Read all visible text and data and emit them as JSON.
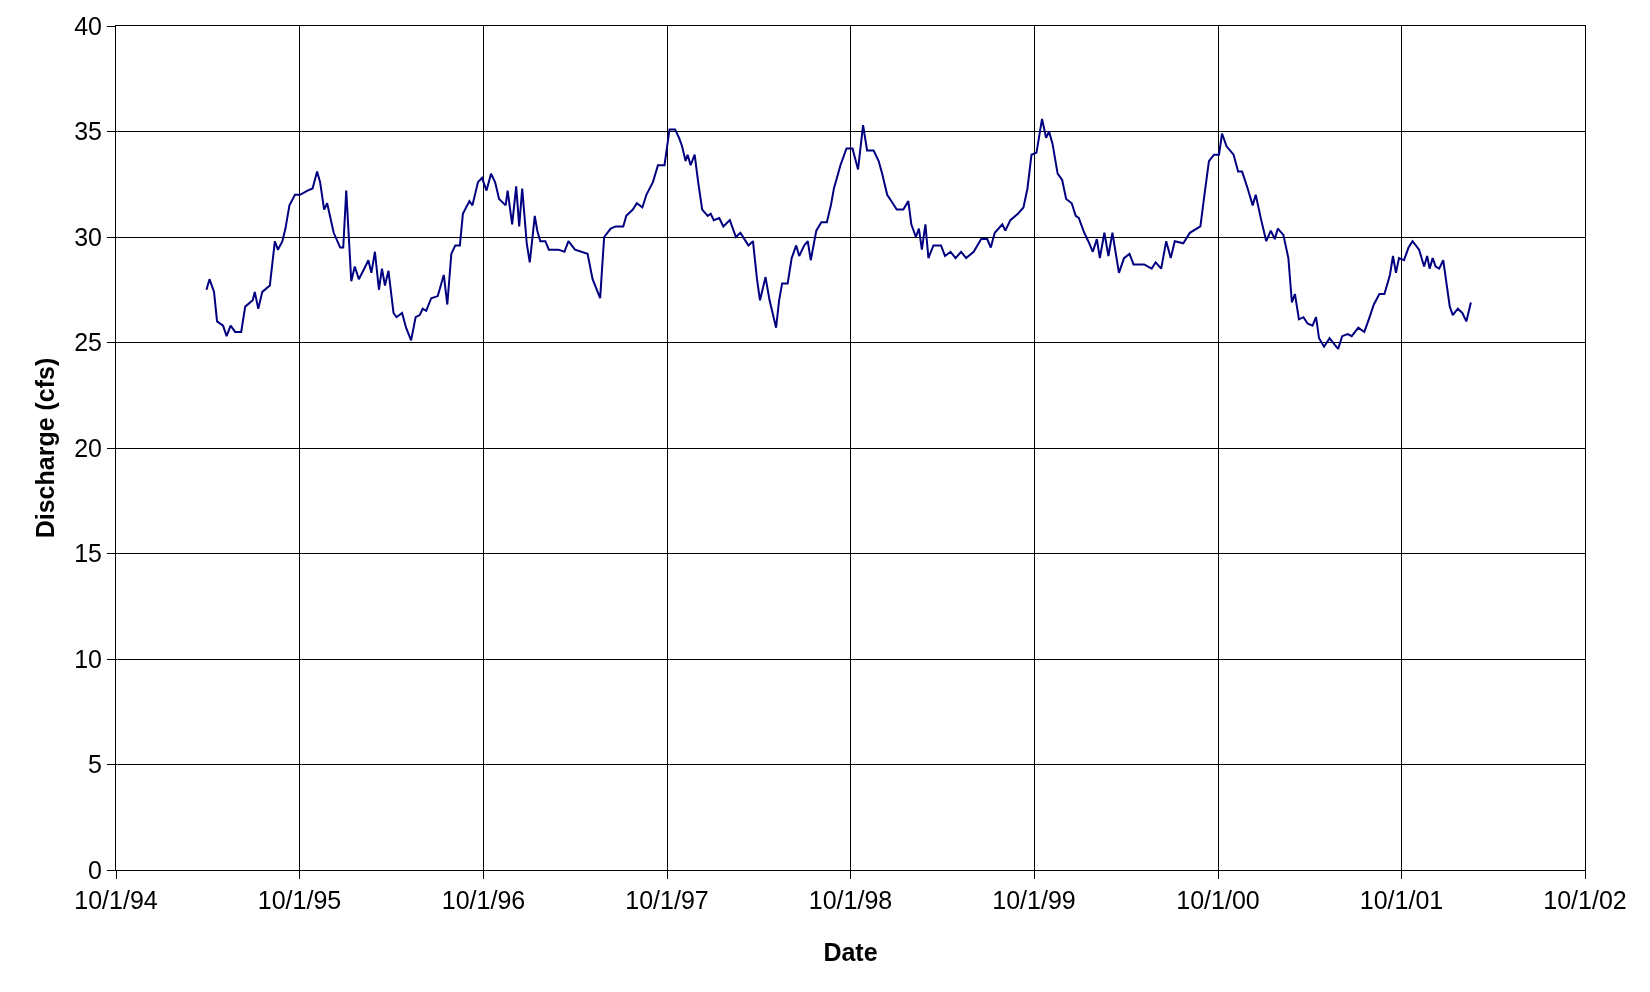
{
  "chart_data": {
    "type": "line",
    "xlabel": "Date",
    "ylabel": "Discharge (cfs)",
    "x": [
      "1995-03-30",
      "1995-04-05",
      "1995-04-14",
      "1995-04-20",
      "1995-05-02",
      "1995-05-09",
      "1995-05-17",
      "1995-05-26",
      "1995-06-07",
      "1995-06-15",
      "1995-06-30",
      "1995-07-04",
      "1995-07-11",
      "1995-07-19",
      "1995-08-03",
      "1995-08-13",
      "1995-08-19",
      "1995-08-28",
      "1995-09-03",
      "1995-09-11",
      "1995-09-22",
      "1995-10-02",
      "1995-10-17",
      "1995-10-27",
      "1995-11-05",
      "1995-11-11",
      "1995-11-19",
      "1995-11-25",
      "1995-12-08",
      "1995-12-21",
      "1995-12-27",
      "1996-01-02",
      "1996-01-12",
      "1996-01-19",
      "1996-01-27",
      "1996-02-09",
      "1996-02-15",
      "1996-02-21",
      "1996-02-28",
      "1996-03-07",
      "1996-03-13",
      "1996-03-19",
      "1996-03-26",
      "1996-04-05",
      "1996-04-11",
      "1996-04-22",
      "1996-04-30",
      "1996-05-10",
      "1996-05-19",
      "1996-05-27",
      "1996-06-02",
      "1996-06-09",
      "1996-06-19",
      "1996-07-02",
      "1996-07-14",
      "1996-07-21",
      "1996-07-29",
      "1996-08-06",
      "1996-08-15",
      "1996-08-21",
      "1996-09-03",
      "1996-09-09",
      "1996-09-20",
      "1996-09-28",
      "1996-10-07",
      "1996-10-16",
      "1996-10-24",
      "1996-11-01",
      "1996-11-14",
      "1996-11-18",
      "1996-11-27",
      "1996-12-05",
      "1996-12-11",
      "1996-12-17",
      "1996-12-26",
      "1997-01-01",
      "1997-01-07",
      "1997-01-11",
      "1997-01-16",
      "1997-01-22",
      "1997-02-01",
      "1997-02-08",
      "1997-02-27",
      "1997-03-11",
      "1997-03-19",
      "1997-04-01",
      "1997-04-26",
      "1997-05-06",
      "1997-05-21",
      "1997-05-29",
      "1997-06-11",
      "1997-06-21",
      "1997-07-06",
      "1997-07-12",
      "1997-07-25",
      "1997-08-02",
      "1997-08-13",
      "1997-08-21",
      "1997-09-03",
      "1997-09-13",
      "1997-09-26",
      "1997-10-06",
      "1997-10-17",
      "1997-10-25",
      "1997-10-31",
      "1997-11-07",
      "1997-11-11",
      "1997-11-17",
      "1997-11-25",
      "1997-12-02",
      "1997-12-10",
      "1997-12-21",
      "1997-12-27",
      "1998-01-02",
      "1998-01-13",
      "1998-01-21",
      "1998-02-03",
      "1998-02-15",
      "1998-02-24",
      "1998-03-04",
      "1998-03-12",
      "1998-03-21",
      "1998-03-29",
      "1998-04-04",
      "1998-04-15",
      "1998-04-23",
      "1998-05-06",
      "1998-05-12",
      "1998-05-18",
      "1998-05-29",
      "1998-06-06",
      "1998-06-15",
      "1998-06-21",
      "1998-07-01",
      "1998-07-08",
      "1998-07-14",
      "1998-07-25",
      "1998-08-04",
      "1998-08-15",
      "1998-08-23",
      "1998-08-29",
      "1998-09-11",
      "1998-09-23",
      "1998-10-05",
      "1998-10-16",
      "1998-10-26",
      "1998-11-03",
      "1998-11-16",
      "1998-11-26",
      "1998-12-03",
      "1998-12-13",
      "1998-12-24",
      "1999-01-01",
      "1999-01-14",
      "1999-01-24",
      "1999-01-30",
      "1999-02-08",
      "1999-02-14",
      "1999-02-20",
      "1999-02-27",
      "1999-03-05",
      "1999-03-15",
      "1999-03-30",
      "1999-04-07",
      "1999-04-18",
      "1999-04-28",
      "1999-05-09",
      "1999-05-19",
      "1999-06-03",
      "1999-06-18",
      "1999-06-30",
      "1999-07-07",
      "1999-07-15",
      "1999-07-30",
      "1999-08-05",
      "1999-08-15",
      "1999-08-30",
      "1999-09-10",
      "1999-09-18",
      "1999-09-26",
      "1999-10-06",
      "1999-10-17",
      "1999-10-25",
      "1999-10-31",
      "1999-11-07",
      "1999-11-17",
      "1999-11-26",
      "1999-12-04",
      "1999-12-15",
      "1999-12-23",
      "1999-12-29",
      "2000-01-09",
      "2000-01-17",
      "2000-01-26",
      "2000-02-03",
      "2000-02-09",
      "2000-02-18",
      "2000-02-26",
      "2000-03-05",
      "2000-03-18",
      "2000-03-28",
      "2000-04-08",
      "2000-04-16",
      "2000-05-07",
      "2000-05-22",
      "2000-05-30",
      "2000-06-10",
      "2000-06-20",
      "2000-06-29",
      "2000-07-07",
      "2000-07-24",
      "2000-08-06",
      "2000-08-27",
      "2000-09-04",
      "2000-09-13",
      "2000-09-23",
      "2000-10-03",
      "2000-10-09",
      "2000-10-18",
      "2000-11-01",
      "2000-11-10",
      "2000-11-18",
      "2000-11-29",
      "2000-12-09",
      "2000-12-15",
      "2000-12-26",
      "2001-01-05",
      "2001-01-14",
      "2001-01-22",
      "2001-01-28",
      "2001-02-08",
      "2001-02-18",
      "2001-02-25",
      "2001-03-03",
      "2001-03-11",
      "2001-03-20",
      "2001-03-28",
      "2001-04-07",
      "2001-04-14",
      "2001-04-20",
      "2001-04-30",
      "2001-05-11",
      "2001-05-21",
      "2001-05-28",
      "2001-06-05",
      "2001-06-16",
      "2001-06-24",
      "2001-07-07",
      "2001-07-19",
      "2001-07-28",
      "2001-08-07",
      "2001-08-18",
      "2001-08-28",
      "2001-09-08",
      "2001-09-14",
      "2001-09-20",
      "2001-09-26",
      "2001-10-06",
      "2001-10-15",
      "2001-10-23",
      "2001-11-05",
      "2001-11-15",
      "2001-11-21",
      "2001-11-26",
      "2001-12-02",
      "2001-12-08",
      "2001-12-15",
      "2001-12-23",
      "2002-01-05",
      "2002-01-11",
      "2002-01-21",
      "2002-01-30",
      "2002-02-07",
      "2002-02-16"
    ],
    "series": [
      {
        "color": "#000080",
        "line_style": "solid",
        "values": [
          27.5,
          28.0,
          27.4,
          26.0,
          25.8,
          25.3,
          25.8,
          25.5,
          25.5,
          26.7,
          27.0,
          27.4,
          26.6,
          27.4,
          27.7,
          29.8,
          29.4,
          29.8,
          30.4,
          31.5,
          32.0,
          32.0,
          32.2,
          32.3,
          33.1,
          32.6,
          31.3,
          31.6,
          30.2,
          29.5,
          29.5,
          32.2,
          27.9,
          28.6,
          28.0,
          28.6,
          28.9,
          28.3,
          29.3,
          27.5,
          28.5,
          27.7,
          28.4,
          26.4,
          26.2,
          26.4,
          25.7,
          25.1,
          26.2,
          26.3,
          26.6,
          26.5,
          27.1,
          27.2,
          28.2,
          26.8,
          29.2,
          29.6,
          29.6,
          31.1,
          31.7,
          31.5,
          32.6,
          32.8,
          32.2,
          33.0,
          32.6,
          31.8,
          31.5,
          32.2,
          30.6,
          32.4,
          30.5,
          32.3,
          29.7,
          28.8,
          30.1,
          31.0,
          30.3,
          29.8,
          29.8,
          29.4,
          29.4,
          29.3,
          29.8,
          29.4,
          29.2,
          28.0,
          27.1,
          30.0,
          30.4,
          30.5,
          30.5,
          31.0,
          31.3,
          31.6,
          31.4,
          32.0,
          32.6,
          33.4,
          33.4,
          35.1,
          35.1,
          34.7,
          34.3,
          33.6,
          33.9,
          33.4,
          33.9,
          32.6,
          31.3,
          31.0,
          31.1,
          30.8,
          30.9,
          30.5,
          30.8,
          30.0,
          30.2,
          29.9,
          29.6,
          29.8,
          28.0,
          27.0,
          28.1,
          27.0,
          25.7,
          27.0,
          27.8,
          27.8,
          29.0,
          29.6,
          29.1,
          29.6,
          29.8,
          28.9,
          30.3,
          30.7,
          30.7,
          31.5,
          32.3,
          33.4,
          34.2,
          34.2,
          33.2,
          35.3,
          34.1,
          34.1,
          33.6,
          33.0,
          32.0,
          31.6,
          31.3,
          31.3,
          31.7,
          30.6,
          30.0,
          30.4,
          29.4,
          30.6,
          29.0,
          29.6,
          29.6,
          29.1,
          29.3,
          29.0,
          29.3,
          29.0,
          29.3,
          29.9,
          29.9,
          29.5,
          30.2,
          30.6,
          30.3,
          30.8,
          31.1,
          31.4,
          32.3,
          33.9,
          34.0,
          35.6,
          34.7,
          35.0,
          34.4,
          33.0,
          32.7,
          31.8,
          31.6,
          31.0,
          30.9,
          30.2,
          29.8,
          29.3,
          29.9,
          29.0,
          30.2,
          29.1,
          30.2,
          28.3,
          29.0,
          29.2,
          28.7,
          28.7,
          28.5,
          28.8,
          28.5,
          29.8,
          29.0,
          29.8,
          29.7,
          30.2,
          30.5,
          32.0,
          33.6,
          33.9,
          33.9,
          34.9,
          34.3,
          33.9,
          33.1,
          33.1,
          32.3,
          31.5,
          32.0,
          30.8,
          29.8,
          30.3,
          29.9,
          30.4,
          30.1,
          29.0,
          26.9,
          27.3,
          26.1,
          26.2,
          25.9,
          25.8,
          26.2,
          25.2,
          24.8,
          25.2,
          24.9,
          24.7,
          25.3,
          25.4,
          25.3,
          25.7,
          25.5,
          26.1,
          26.8,
          27.3,
          27.3,
          28.2,
          29.1,
          28.3,
          29.0,
          28.9,
          29.5,
          29.8,
          29.4,
          28.6,
          29.1,
          28.5,
          29.0,
          28.6,
          28.5,
          28.9,
          26.7,
          26.3,
          26.6,
          26.4,
          26.0,
          26.9
        ]
      }
    ],
    "xlim": [
      "1994-10-01",
      "2002-10-01"
    ],
    "xticks": [
      {
        "value": "1994-10-01",
        "label": "10/1/94"
      },
      {
        "value": "1995-10-01",
        "label": "10/1/95"
      },
      {
        "value": "1996-10-01",
        "label": "10/1/96"
      },
      {
        "value": "1997-10-01",
        "label": "10/1/97"
      },
      {
        "value": "1998-10-01",
        "label": "10/1/98"
      },
      {
        "value": "1999-10-01",
        "label": "10/1/99"
      },
      {
        "value": "2000-10-01",
        "label": "10/1/00"
      },
      {
        "value": "2001-10-01",
        "label": "10/1/01"
      },
      {
        "value": "2002-10-01",
        "label": "10/1/02"
      }
    ],
    "ylim": [
      0,
      40
    ],
    "yticks": [
      0,
      5,
      10,
      15,
      20,
      25,
      30,
      35,
      40
    ],
    "grid": true,
    "marker": "none"
  }
}
